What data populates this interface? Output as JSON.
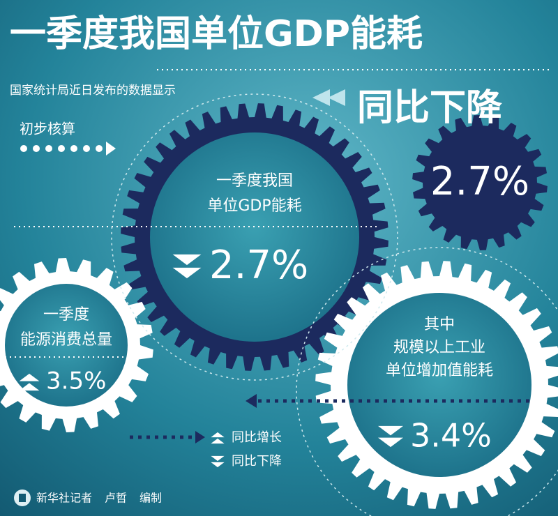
{
  "title": "一季度我国单位GDP能耗",
  "subtitle": "国家统计局近日发布的数据显示",
  "prelim": "初步核算",
  "headline": {
    "label": "同比下降",
    "value": "2.7%"
  },
  "gears": [
    {
      "label_lines": [
        "一季度我国",
        "单位GDP能耗"
      ],
      "value": "2.7%",
      "direction": "down"
    },
    {
      "label_lines": [
        "一季度",
        "能源消费总量"
      ],
      "value": "3.5%",
      "direction": "up"
    },
    {
      "label_lines": [
        "其中",
        "规模以上工业",
        "单位增加值能耗"
      ],
      "value": "3.4%",
      "direction": "down"
    }
  ],
  "legend": [
    {
      "label": "同比增长",
      "direction": "up"
    },
    {
      "label": "同比下降",
      "direction": "down"
    }
  ],
  "credit": [
    "新华社记者",
    "卢哲",
    "编制"
  ]
}
